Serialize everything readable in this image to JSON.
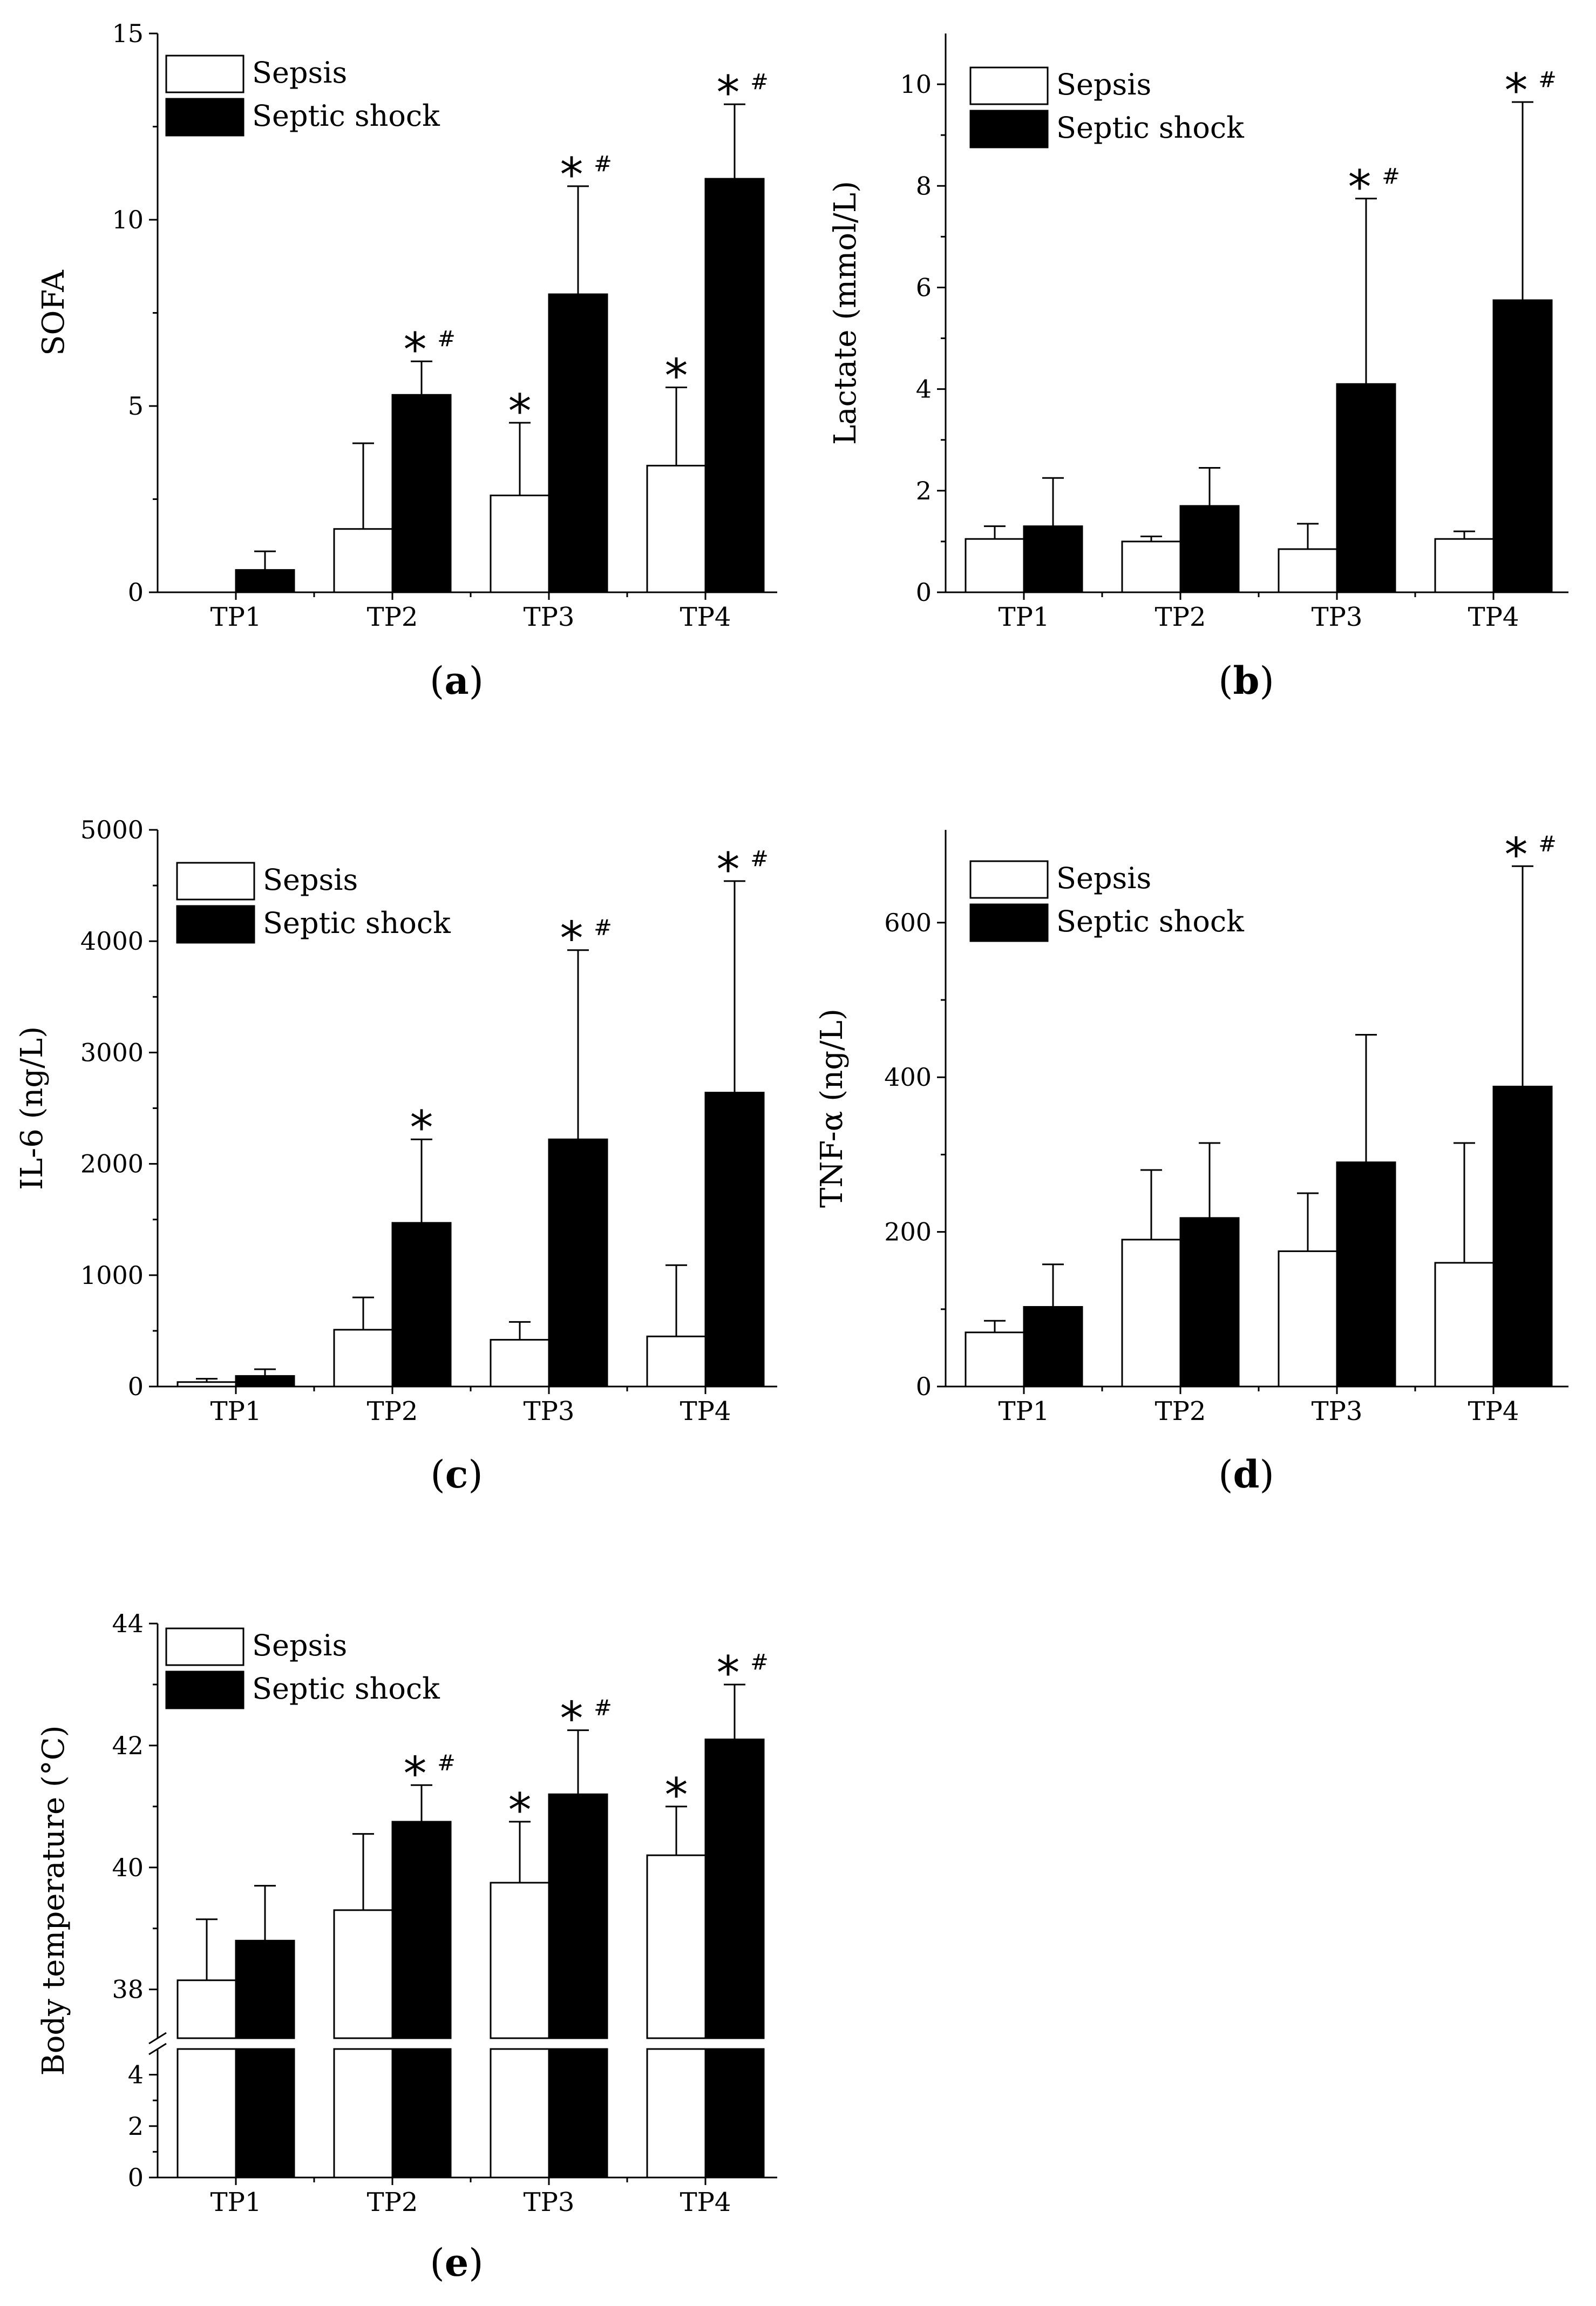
{
  "figure_title": "",
  "legend": {
    "sepsis": "Sepsis",
    "septic_shock": "Septic shock"
  },
  "colors": {
    "sepsis": "#ffffff",
    "septic_shock": "#000000",
    "outline": "#000000"
  },
  "chart_data": [
    {
      "id": "a",
      "type": "bar",
      "panel_label": "(a)",
      "panel_letter": "a",
      "title": "",
      "xlabel": "",
      "ylabel": "SOFA",
      "categories": [
        "TP1",
        "TP2",
        "TP3",
        "TP4"
      ],
      "ylim": [
        0,
        15
      ],
      "yticks": [
        0,
        5,
        10,
        15
      ],
      "yticklabels": [
        "0",
        "5",
        "10",
        "15"
      ],
      "legend_position": "top-left",
      "grid": false,
      "series": [
        {
          "name": "Sepsis",
          "values": [
            0,
            1.7,
            2.6,
            3.4
          ],
          "errors": [
            0,
            2.3,
            1.95,
            2.1
          ]
        },
        {
          "name": "Septic shock",
          "values": [
            0.6,
            5.3,
            8.0,
            11.1
          ],
          "errors": [
            0.5,
            0.9,
            2.9,
            2.0
          ]
        }
      ],
      "annotations": [
        {
          "category": "TP2",
          "series": 1,
          "star": "*",
          "hash": "#"
        },
        {
          "category": "TP3",
          "series": 0,
          "star": "*",
          "hash": ""
        },
        {
          "category": "TP3",
          "series": 1,
          "star": "*",
          "hash": "#"
        },
        {
          "category": "TP4",
          "series": 0,
          "star": "*",
          "hash": ""
        },
        {
          "category": "TP4",
          "series": 1,
          "star": "*",
          "hash": "#"
        }
      ]
    },
    {
      "id": "b",
      "type": "bar",
      "panel_label": "(b)",
      "panel_letter": "b",
      "title": "",
      "xlabel": "",
      "ylabel": "Lactate (mmol/L)",
      "categories": [
        "TP1",
        "TP2",
        "TP3",
        "TP4"
      ],
      "ylim": [
        0,
        11
      ],
      "yticks": [
        0,
        2,
        4,
        6,
        8,
        10
      ],
      "yticklabels": [
        "0",
        "2",
        "4",
        "6",
        "8",
        "10"
      ],
      "legend_position": "top-left",
      "grid": false,
      "series": [
        {
          "name": "Sepsis",
          "values": [
            1.05,
            1.0,
            0.85,
            1.05
          ],
          "errors": [
            0.25,
            0.1,
            0.5,
            0.15
          ]
        },
        {
          "name": "Septic shock",
          "values": [
            1.3,
            1.7,
            4.1,
            5.75
          ],
          "errors": [
            0.95,
            0.75,
            3.65,
            3.9
          ]
        }
      ],
      "annotations": [
        {
          "category": "TP3",
          "series": 1,
          "star": "*",
          "hash": "#"
        },
        {
          "category": "TP4",
          "series": 1,
          "star": "*",
          "hash": "#"
        }
      ]
    },
    {
      "id": "c",
      "type": "bar",
      "panel_label": "(c)",
      "panel_letter": "c",
      "title": "",
      "xlabel": "",
      "ylabel": "IL-6 (ng/L)",
      "categories": [
        "TP1",
        "TP2",
        "TP3",
        "TP4"
      ],
      "ylim": [
        0,
        5000
      ],
      "yticks": [
        0,
        1000,
        2000,
        3000,
        4000,
        5000
      ],
      "yticklabels": [
        "0",
        "1000",
        "2000",
        "3000",
        "4000",
        "5000"
      ],
      "legend_position": "top-left",
      "grid": false,
      "series": [
        {
          "name": "Sepsis",
          "values": [
            40,
            510,
            420,
            450
          ],
          "errors": [
            30,
            290,
            160,
            640
          ]
        },
        {
          "name": "Septic shock",
          "values": [
            95,
            1470,
            2220,
            2640
          ],
          "errors": [
            60,
            750,
            1700,
            1900
          ]
        }
      ],
      "annotations": [
        {
          "category": "TP2",
          "series": 1,
          "star": "*",
          "hash": ""
        },
        {
          "category": "TP3",
          "series": 1,
          "star": "*",
          "hash": "#"
        },
        {
          "category": "TP4",
          "series": 1,
          "star": "*",
          "hash": "#"
        }
      ]
    },
    {
      "id": "d",
      "type": "bar",
      "panel_label": "(d)",
      "panel_letter": "d",
      "title": "",
      "xlabel": "",
      "ylabel": "TNF-α (ng/L)",
      "categories": [
        "TP1",
        "TP2",
        "TP3",
        "TP4"
      ],
      "ylim": [
        0,
        720
      ],
      "yticks": [
        0,
        200,
        400,
        600
      ],
      "yticklabels": [
        "0",
        "200",
        "400",
        "600"
      ],
      "legend_position": "top-left",
      "grid": false,
      "series": [
        {
          "name": "Sepsis",
          "values": [
            70,
            190,
            175,
            160
          ],
          "errors": [
            15,
            90,
            75,
            155
          ]
        },
        {
          "name": "Septic shock",
          "values": [
            103,
            218,
            290,
            388
          ],
          "errors": [
            55,
            97,
            165,
            285
          ]
        }
      ],
      "annotations": [
        {
          "category": "TP4",
          "series": 1,
          "star": "*",
          "hash": "#"
        }
      ]
    },
    {
      "id": "e",
      "type": "bar",
      "panel_label": "(e)",
      "panel_letter": "e",
      "title": "",
      "xlabel": "",
      "ylabel": "Body temperature (°C)",
      "categories": [
        "TP1",
        "TP2",
        "TP3",
        "TP4"
      ],
      "axis_break": true,
      "ylim_upper": [
        37.2,
        44
      ],
      "yticks_upper": [
        38,
        40,
        42,
        44
      ],
      "yticklabels_upper": [
        "38",
        "40",
        "42",
        "44"
      ],
      "ylim_lower": [
        0,
        5
      ],
      "yticks_lower": [
        0,
        2,
        4
      ],
      "yticklabels_lower": [
        "0",
        "2",
        "4"
      ],
      "legend_position": "top-left",
      "grid": false,
      "series": [
        {
          "name": "Sepsis",
          "values": [
            38.15,
            39.3,
            39.75,
            40.2
          ],
          "errors": [
            1.0,
            1.25,
            1.0,
            0.8
          ]
        },
        {
          "name": "Septic shock",
          "values": [
            38.8,
            40.75,
            41.2,
            42.1
          ],
          "errors": [
            0.9,
            0.6,
            1.05,
            0.9
          ]
        }
      ],
      "annotations": [
        {
          "category": "TP2",
          "series": 1,
          "star": "*",
          "hash": "#"
        },
        {
          "category": "TP3",
          "series": 0,
          "star": "*",
          "hash": ""
        },
        {
          "category": "TP3",
          "series": 1,
          "star": "*",
          "hash": "#"
        },
        {
          "category": "TP4",
          "series": 0,
          "star": "*",
          "hash": ""
        },
        {
          "category": "TP4",
          "series": 1,
          "star": "*",
          "hash": "#"
        }
      ]
    }
  ]
}
